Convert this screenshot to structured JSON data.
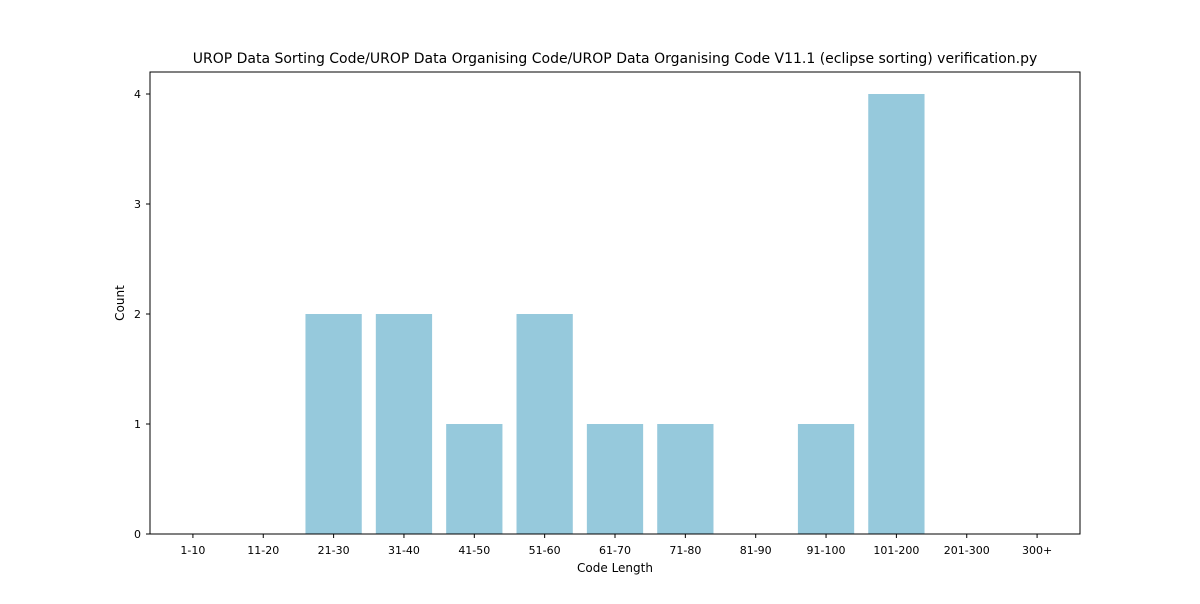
{
  "chart_data": {
    "type": "bar",
    "title": "UROP Data Sorting Code/UROP Data Organising Code/UROP Data Organising Code V11.1 (eclipse sorting) verification.py",
    "xlabel": "Code Length",
    "ylabel": "Count",
    "categories": [
      "1-10",
      "11-20",
      "21-30",
      "31-40",
      "41-50",
      "51-60",
      "61-70",
      "71-80",
      "81-90",
      "91-100",
      "101-200",
      "201-300",
      "300+"
    ],
    "values": [
      0,
      0,
      2,
      2,
      1,
      2,
      1,
      1,
      0,
      1,
      4,
      0,
      0
    ],
    "ylim": [
      0,
      4.2
    ],
    "yticks": [
      0,
      1,
      2,
      3,
      4
    ],
    "grid": false,
    "legend": "none",
    "colors": {
      "bar": "#96c9dc",
      "axes": "#000000"
    }
  }
}
